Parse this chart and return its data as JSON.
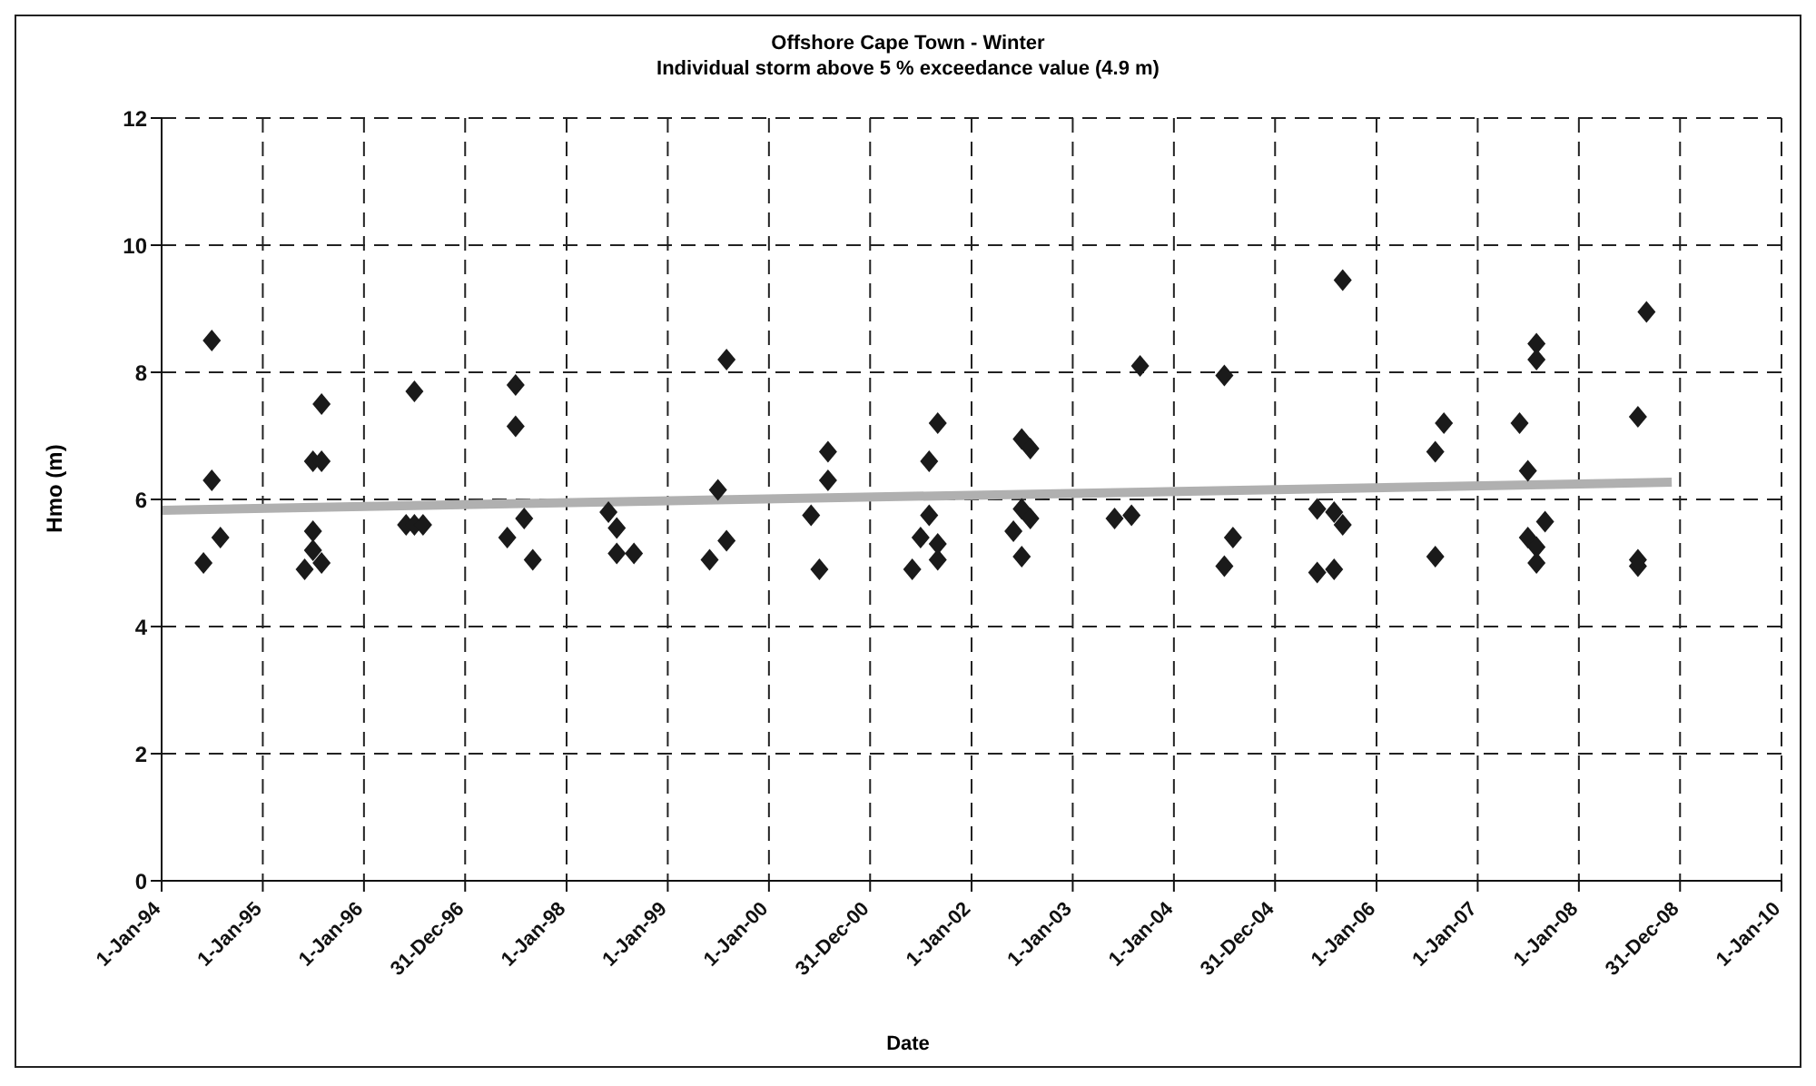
{
  "chart_data": {
    "type": "scatter",
    "title": "Offshore Cape Town - Winter",
    "subtitle": "Individual storm above 5 % exceedance value (4.9 m)",
    "xlabel": "Date",
    "ylabel": "Hmo (m)",
    "xlim": [
      "1994-01-01",
      "2010-01-01"
    ],
    "xticks": [
      {
        "value": "1994-01-01",
        "label": "1-Jan-94"
      },
      {
        "value": "1995-01-01",
        "label": "1-Jan-95"
      },
      {
        "value": "1996-01-01",
        "label": "1-Jan-96"
      },
      {
        "value": "1996-12-31",
        "label": "31-Dec-96"
      },
      {
        "value": "1998-01-01",
        "label": "1-Jan-98"
      },
      {
        "value": "1999-01-01",
        "label": "1-Jan-99"
      },
      {
        "value": "2000-01-01",
        "label": "1-Jan-00"
      },
      {
        "value": "2000-12-31",
        "label": "31-Dec-00"
      },
      {
        "value": "2002-01-01",
        "label": "1-Jan-02"
      },
      {
        "value": "2003-01-01",
        "label": "1-Jan-03"
      },
      {
        "value": "2004-01-01",
        "label": "1-Jan-04"
      },
      {
        "value": "2004-12-31",
        "label": "31-Dec-04"
      },
      {
        "value": "2006-01-01",
        "label": "1-Jan-06"
      },
      {
        "value": "2007-01-01",
        "label": "1-Jan-07"
      },
      {
        "value": "2008-01-01",
        "label": "1-Jan-08"
      },
      {
        "value": "2008-12-31",
        "label": "31-Dec-08"
      },
      {
        "value": "2010-01-01",
        "label": "1-Jan-10"
      }
    ],
    "ylim": [
      0,
      12
    ],
    "yticks": [
      0,
      2,
      4,
      6,
      8,
      10,
      12
    ],
    "grid": true,
    "series": [
      {
        "marker": "diamond",
        "color": "#1a1a1a",
        "x": [
          "1994-07",
          "1994-07",
          "1994-08",
          "1994-06",
          "1995-08",
          "1995-07",
          "1995-08",
          "1995-07",
          "1995-07",
          "1995-08",
          "1995-06",
          "1996-07",
          "1996-06",
          "1996-07",
          "1996-08",
          "1997-07",
          "1997-07",
          "1997-08",
          "1997-06",
          "1997-09",
          "1998-06",
          "1998-07",
          "1998-07",
          "1998-09",
          "1999-08",
          "1999-07",
          "1999-08",
          "1999-06",
          "2000-08",
          "2000-08",
          "2000-06",
          "2000-07",
          "2001-09",
          "2001-08",
          "2001-08",
          "2001-07",
          "2001-09",
          "2001-06",
          "2001-09",
          "2002-07",
          "2002-08",
          "2002-07",
          "2002-08",
          "2002-06",
          "2002-07",
          "2003-09",
          "2003-06",
          "2003-08",
          "2004-07",
          "2004-08",
          "2004-07",
          "2005-09",
          "2005-06",
          "2005-08",
          "2005-09",
          "2005-06",
          "2005-08",
          "2006-09",
          "2006-08",
          "2006-08",
          "2007-08",
          "2007-08",
          "2007-06",
          "2007-07",
          "2007-09",
          "2007-07",
          "2007-08",
          "2007-08",
          "2008-09",
          "2008-08",
          "2008-08",
          "2008-08"
        ],
        "values": [
          8.5,
          6.3,
          5.4,
          5.0,
          7.5,
          6.6,
          6.6,
          5.5,
          5.2,
          5.0,
          4.9,
          7.7,
          5.6,
          5.6,
          5.6,
          7.8,
          7.15,
          5.7,
          5.4,
          5.05,
          5.8,
          5.55,
          5.15,
          5.15,
          8.2,
          6.15,
          5.35,
          5.05,
          6.75,
          6.3,
          5.75,
          4.9,
          7.2,
          6.6,
          5.75,
          5.4,
          5.05,
          4.9,
          5.3,
          6.95,
          6.8,
          5.85,
          5.7,
          5.5,
          5.1,
          8.1,
          5.7,
          5.75,
          7.95,
          5.4,
          4.95,
          9.45,
          5.85,
          5.8,
          5.6,
          4.85,
          4.9,
          7.2,
          6.75,
          5.1,
          8.45,
          8.2,
          7.2,
          6.45,
          5.65,
          5.4,
          5.25,
          5.0,
          8.95,
          7.3,
          4.95,
          5.05
        ]
      },
      {
        "type": "line",
        "marker": "none",
        "color": "#b0b0b0",
        "x": [
          "1994-01",
          "2008-12"
        ],
        "values": [
          5.83,
          6.27
        ]
      }
    ]
  }
}
